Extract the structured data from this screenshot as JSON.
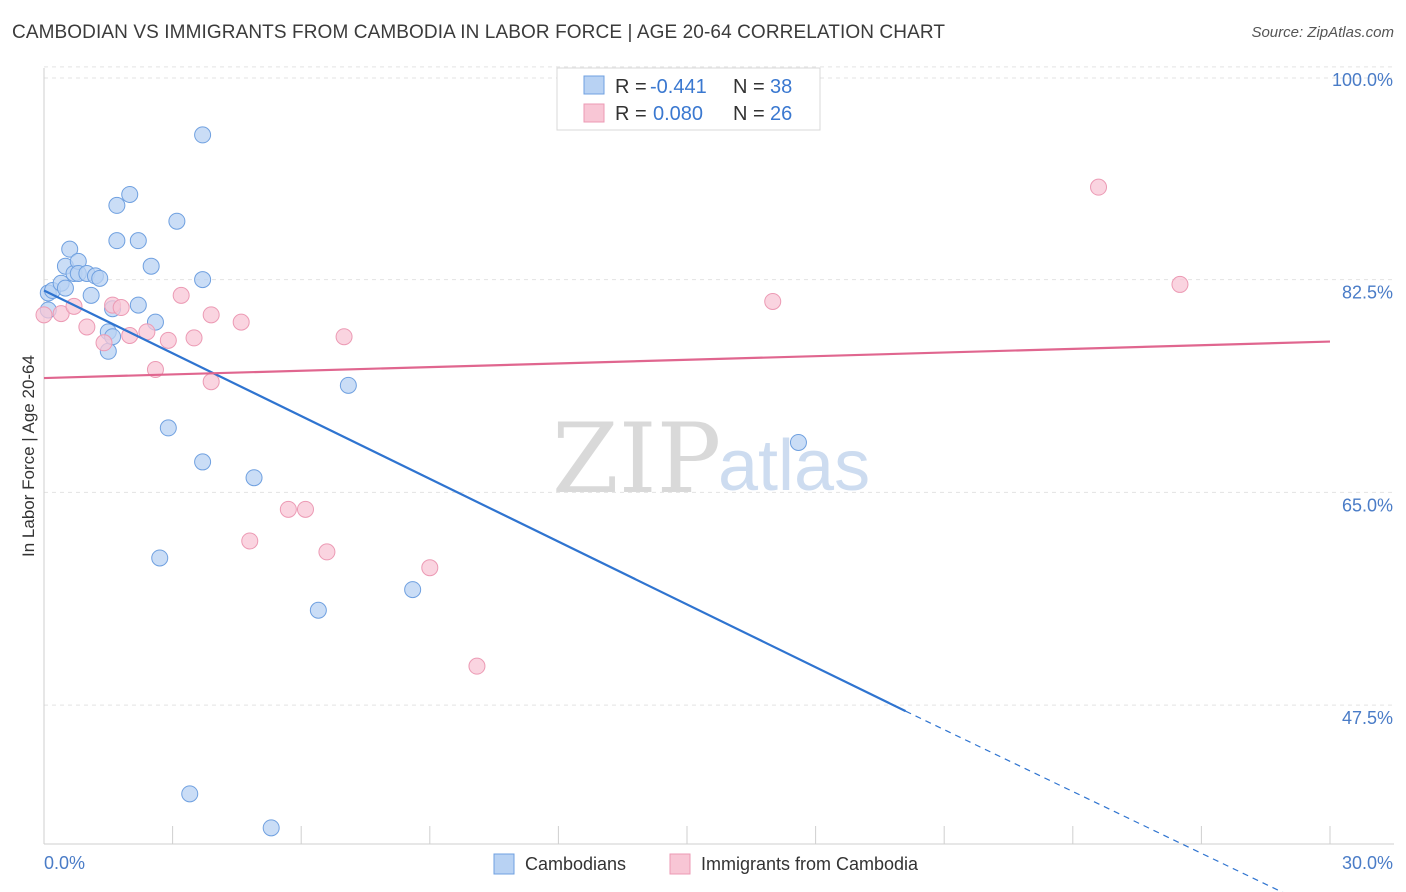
{
  "header": {
    "title": "CAMBODIAN VS IMMIGRANTS FROM CAMBODIA IN LABOR FORCE | AGE 20-64 CORRELATION CHART",
    "source": "Source: ZipAtlas.com"
  },
  "watermark": {
    "zip": "ZIP",
    "atlas": "atlas"
  },
  "chart_data": {
    "type": "scatter",
    "title": "CAMBODIAN VS IMMIGRANTS FROM CAMBODIA IN LABOR FORCE | AGE 20-64 CORRELATION CHART",
    "xlabel": "",
    "ylabel": "In Labor Force | Age 20-64",
    "xlim": [
      0,
      30
    ],
    "ylim": [
      34,
      102
    ],
    "x_tick_labels": {
      "min": "0.0%",
      "max": "30.0%"
    },
    "y_ticks": [
      {
        "value": 100,
        "label": "100.0%"
      },
      {
        "value": 82.5,
        "label": "82.5%"
      },
      {
        "value": 65,
        "label": "65.0%"
      },
      {
        "value": 47.5,
        "label": "47.5%"
      }
    ],
    "legend_stats": [
      {
        "r_label": "R =",
        "r_value": "-0.441",
        "n_label": "N =",
        "n_value": "38"
      },
      {
        "r_label": "R =",
        "r_value": "0.080",
        "n_label": "N =",
        "n_value": "26"
      }
    ],
    "series": [
      {
        "name": "Cambodians",
        "color": "#6fa0e0",
        "fill": "#b8d2f3",
        "line_color": "#2f74d0",
        "trend": {
          "x0": 0,
          "y0": 81.6,
          "x1": 20.1,
          "y1": 47.0,
          "dash_x1": 29.6,
          "dash_y1": 30.9
        },
        "points": [
          [
            0.1,
            81.4
          ],
          [
            0.2,
            81.6
          ],
          [
            0.4,
            82.2
          ],
          [
            0.5,
            81.8
          ],
          [
            0.5,
            83.6
          ],
          [
            0.6,
            85.0
          ],
          [
            0.7,
            83.0
          ],
          [
            0.8,
            84.0
          ],
          [
            0.8,
            83.0
          ],
          [
            1.0,
            83.0
          ],
          [
            1.1,
            81.2
          ],
          [
            1.2,
            82.8
          ],
          [
            1.3,
            82.6
          ],
          [
            1.5,
            78.2
          ],
          [
            1.5,
            76.6
          ],
          [
            1.6,
            80.1
          ],
          [
            1.6,
            77.8
          ],
          [
            1.7,
            88.6
          ],
          [
            1.7,
            85.7
          ],
          [
            2.0,
            89.5
          ],
          [
            2.2,
            85.7
          ],
          [
            2.2,
            80.4
          ],
          [
            2.5,
            83.6
          ],
          [
            2.9,
            70.3
          ],
          [
            2.7,
            59.6
          ],
          [
            3.1,
            87.3
          ],
          [
            3.7,
            94.4
          ],
          [
            3.7,
            82.5
          ],
          [
            3.7,
            67.5
          ],
          [
            4.9,
            66.2
          ],
          [
            6.4,
            55.3
          ],
          [
            7.1,
            73.8
          ],
          [
            8.6,
            57.0
          ],
          [
            3.4,
            40.2
          ],
          [
            5.3,
            37.4
          ],
          [
            17.6,
            69.1
          ],
          [
            0.1,
            80.0
          ],
          [
            2.6,
            79.0
          ]
        ]
      },
      {
        "name": "Immigrants from Cambodia",
        "color": "#ec9ab4",
        "fill": "#f8c6d5",
        "line_color": "#e0668f",
        "trend": {
          "x0": 0,
          "y0": 74.4,
          "x1": 30,
          "y1": 77.4
        },
        "points": [
          [
            0.0,
            79.6
          ],
          [
            0.4,
            79.7
          ],
          [
            0.7,
            80.3
          ],
          [
            1.0,
            78.6
          ],
          [
            1.4,
            77.3
          ],
          [
            1.6,
            80.4
          ],
          [
            1.8,
            80.2
          ],
          [
            2.0,
            77.9
          ],
          [
            2.4,
            78.2
          ],
          [
            2.6,
            75.1
          ],
          [
            2.9,
            77.5
          ],
          [
            3.2,
            81.2
          ],
          [
            3.5,
            77.7
          ],
          [
            3.9,
            79.6
          ],
          [
            3.9,
            74.1
          ],
          [
            4.6,
            79.0
          ],
          [
            4.8,
            61.0
          ],
          [
            5.7,
            63.6
          ],
          [
            6.1,
            63.6
          ],
          [
            6.6,
            60.1
          ],
          [
            7.0,
            77.8
          ],
          [
            9.0,
            58.8
          ],
          [
            10.1,
            50.7
          ],
          [
            17.0,
            80.7
          ],
          [
            24.6,
            90.1
          ],
          [
            26.5,
            82.1
          ]
        ]
      }
    ]
  }
}
